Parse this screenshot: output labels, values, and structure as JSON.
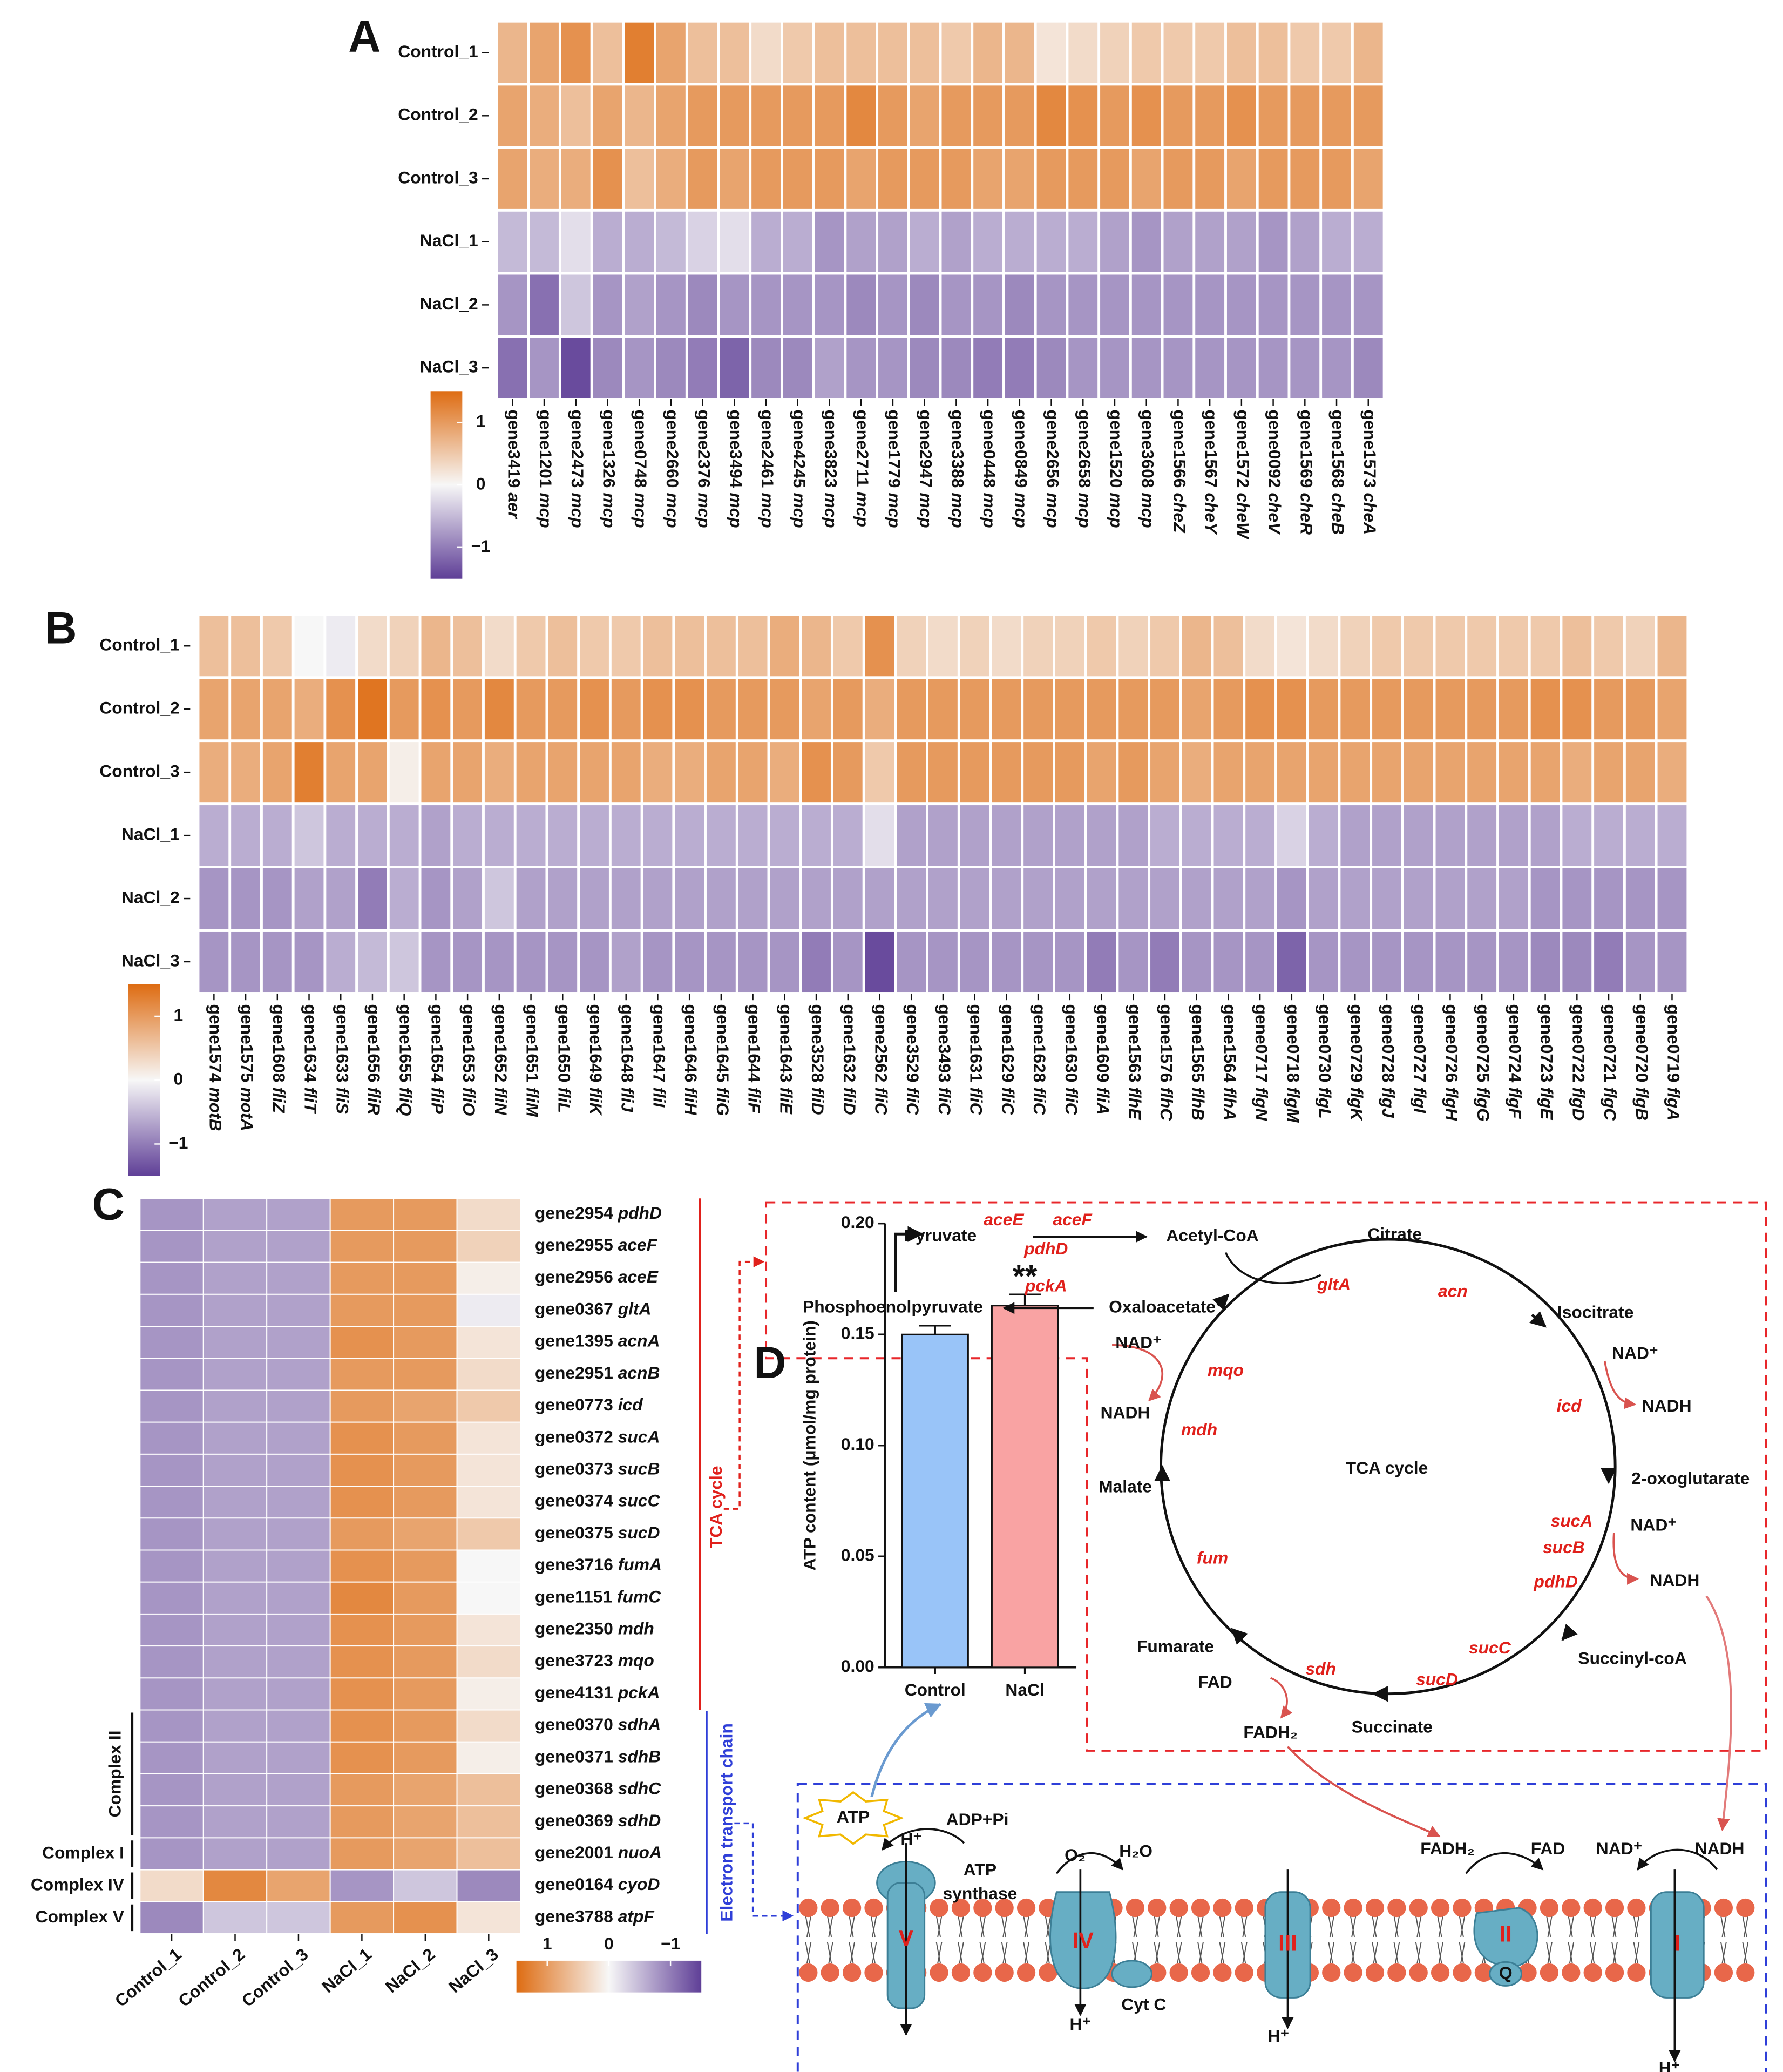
{
  "chart_data": [
    {
      "type": "heatmap",
      "panel": "A",
      "rows": [
        "Control_1",
        "Control_2",
        "Control_3",
        "NaCl_1",
        "NaCl_2",
        "NaCl_3"
      ],
      "columns": [
        "gene3419 aer",
        "gene1201 mcp",
        "gene2473 mcp",
        "gene1326 mcp",
        "gene0748 mcp",
        "gene2660 mcp",
        "gene2376 mcp",
        "gene3494 mcp",
        "gene2461 mcp",
        "gene4245 mcp",
        "gene3823 mcp",
        "gene2711 mcp",
        "gene1779 mcp",
        "gene2947 mcp",
        "gene3388 mcp",
        "gene0448 mcp",
        "gene0849 mcp",
        "gene2656 mcp",
        "gene2658 mcp",
        "gene1520 mcp",
        "gene3608 mcp",
        "gene1566 cheZ",
        "gene1567 cheY",
        "gene1572 cheW",
        "gene0092 cheV",
        "gene1569 cheR",
        "gene1568 cheB",
        "gene1573 cheA"
      ],
      "values": [
        [
          0.7,
          0.9,
          1.1,
          0.6,
          1.3,
          0.9,
          0.6,
          0.6,
          0.3,
          0.5,
          0.6,
          0.6,
          0.6,
          0.6,
          0.5,
          0.7,
          0.7,
          0.2,
          0.3,
          0.4,
          0.5,
          0.5,
          0.5,
          0.6,
          0.6,
          0.5,
          0.5,
          0.7
        ],
        [
          0.9,
          0.8,
          0.6,
          0.9,
          0.7,
          0.9,
          1.0,
          1.0,
          1.0,
          1.0,
          1.0,
          1.2,
          1.0,
          0.9,
          1.0,
          1.0,
          1.0,
          1.2,
          1.1,
          1.0,
          1.1,
          1.0,
          1.0,
          1.1,
          1.0,
          1.0,
          1.0,
          1.0
        ],
        [
          0.9,
          0.8,
          0.8,
          1.1,
          0.6,
          0.8,
          1.0,
          0.9,
          1.0,
          1.0,
          1.0,
          0.9,
          1.0,
          1.0,
          1.0,
          0.9,
          0.9,
          1.0,
          1.0,
          1.0,
          0.9,
          1.0,
          1.0,
          0.9,
          1.0,
          1.0,
          1.0,
          0.9
        ],
        [
          -0.5,
          -0.5,
          -0.2,
          -0.6,
          -0.6,
          -0.5,
          -0.3,
          -0.2,
          -0.6,
          -0.6,
          -0.8,
          -0.7,
          -0.7,
          -0.6,
          -0.7,
          -0.6,
          -0.6,
          -0.6,
          -0.6,
          -0.7,
          -0.8,
          -0.7,
          -0.7,
          -0.7,
          -0.8,
          -0.7,
          -0.6,
          -0.6
        ],
        [
          -0.8,
          -1.1,
          -0.4,
          -0.8,
          -0.7,
          -0.8,
          -0.9,
          -0.8,
          -0.8,
          -0.8,
          -0.8,
          -0.9,
          -0.8,
          -0.9,
          -0.8,
          -0.8,
          -0.9,
          -0.8,
          -0.8,
          -0.8,
          -0.8,
          -0.8,
          -0.8,
          -0.8,
          -0.8,
          -0.8,
          -0.8,
          -0.8
        ],
        [
          -1.1,
          -0.8,
          -1.4,
          -0.9,
          -0.8,
          -0.9,
          -1.0,
          -1.2,
          -0.9,
          -0.9,
          -0.7,
          -0.8,
          -0.8,
          -0.9,
          -0.9,
          -1.0,
          -1.0,
          -0.9,
          -0.8,
          -0.8,
          -0.8,
          -0.8,
          -0.8,
          -0.8,
          -0.8,
          -0.8,
          -0.8,
          -0.9
        ]
      ],
      "zlim": [
        -1.5,
        1.5
      ],
      "zticks": [
        1,
        0,
        {
          "value": -1,
          "label": "−1"
        }
      ],
      "colors": {
        "low": "#5f3f97",
        "mid": "#f7f7f7",
        "high": "#de6c12"
      }
    },
    {
      "type": "heatmap",
      "panel": "B",
      "rows": [
        "Control_1",
        "Control_2",
        "Control_3",
        "NaCl_1",
        "NaCl_2",
        "NaCl_3"
      ],
      "columns": [
        "gene1574 motB",
        "gene1575 motA",
        "gene1608 fliZ",
        "gene1634 fliT",
        "gene1633 fliS",
        "gene1656 fliR",
        "gene1655 fliQ",
        "gene1654 fliP",
        "gene1653 fliO",
        "gene1652 fliN",
        "gene1651 fliM",
        "gene1650 fliL",
        "gene1649 fliK",
        "gene1648 fliJ",
        "gene1647 fliI",
        "gene1646 fliH",
        "gene1645 fliG",
        "gene1644 fliF",
        "gene1643 fliE",
        "gene3528 fliD",
        "gene1632 fliD",
        "gene2562 fliC",
        "gene3529 fliC",
        "gene3493 fliC",
        "gene1631 fliC",
        "gene1629 fliC",
        "gene1628 fliC",
        "gene1630 fliC",
        "gene1609 fliA",
        "gene1563 flhE",
        "gene1576 flhC",
        "gene1565 flhB",
        "gene1564 flhA",
        "gene0717 flgN",
        "gene0718 flgM",
        "gene0730 flgL",
        "gene0729 flgK",
        "gene0728 flgJ",
        "gene0727 flgI",
        "gene0726 flgH",
        "gene0725 flgG",
        "gene0724 flgF",
        "gene0723 flgE",
        "gene0722 flgD",
        "gene0721 flgC",
        "gene0720 flgB",
        "gene0719 flgA"
      ],
      "values": [
        [
          0.6,
          0.6,
          0.5,
          0.0,
          -0.1,
          0.3,
          0.4,
          0.7,
          0.6,
          0.3,
          0.5,
          0.6,
          0.5,
          0.5,
          0.6,
          0.6,
          0.6,
          0.6,
          0.8,
          0.7,
          0.5,
          1.1,
          0.4,
          0.3,
          0.4,
          0.3,
          0.4,
          0.4,
          0.5,
          0.4,
          0.5,
          0.7,
          0.6,
          0.3,
          0.2,
          0.3,
          0.4,
          0.5,
          0.5,
          0.5,
          0.5,
          0.5,
          0.5,
          0.6,
          0.5,
          0.4,
          0.7
        ],
        [
          0.9,
          0.9,
          0.9,
          0.8,
          1.1,
          1.4,
          1.0,
          1.1,
          1.0,
          1.2,
          1.0,
          1.0,
          1.1,
          1.0,
          1.1,
          1.1,
          1.0,
          1.0,
          1.0,
          0.9,
          1.0,
          0.8,
          1.0,
          1.0,
          1.0,
          1.0,
          1.0,
          1.0,
          1.0,
          1.0,
          1.0,
          0.9,
          1.0,
          1.1,
          1.1,
          1.0,
          1.0,
          1.0,
          1.0,
          1.0,
          1.0,
          1.0,
          1.1,
          1.1,
          1.0,
          1.0,
          0.9
        ],
        [
          0.8,
          0.8,
          0.9,
          1.3,
          0.9,
          0.9,
          0.1,
          0.9,
          0.9,
          0.8,
          0.9,
          0.9,
          0.9,
          0.9,
          0.8,
          0.8,
          0.9,
          0.9,
          0.8,
          1.1,
          1.0,
          0.5,
          1.0,
          1.0,
          1.0,
          1.0,
          1.0,
          1.0,
          0.9,
          1.0,
          0.9,
          0.8,
          0.9,
          0.9,
          0.9,
          0.9,
          0.9,
          0.9,
          0.9,
          0.9,
          0.9,
          0.9,
          0.9,
          0.8,
          0.9,
          0.9,
          0.8
        ],
        [
          -0.6,
          -0.6,
          -0.6,
          -0.4,
          -0.6,
          -0.6,
          -0.6,
          -0.7,
          -0.6,
          -0.6,
          -0.6,
          -0.6,
          -0.6,
          -0.6,
          -0.6,
          -0.6,
          -0.6,
          -0.6,
          -0.6,
          -0.6,
          -0.6,
          -0.2,
          -0.7,
          -0.7,
          -0.7,
          -0.7,
          -0.7,
          -0.7,
          -0.7,
          -0.7,
          -0.6,
          -0.6,
          -0.6,
          -0.6,
          -0.3,
          -0.6,
          -0.7,
          -0.7,
          -0.7,
          -0.7,
          -0.7,
          -0.7,
          -0.7,
          -0.6,
          -0.6,
          -0.6,
          -0.6
        ],
        [
          -0.8,
          -0.8,
          -0.8,
          -0.7,
          -0.7,
          -1.0,
          -0.6,
          -0.8,
          -0.7,
          -0.4,
          -0.7,
          -0.7,
          -0.7,
          -0.7,
          -0.7,
          -0.7,
          -0.7,
          -0.7,
          -0.7,
          -0.7,
          -0.7,
          -0.7,
          -0.7,
          -0.7,
          -0.7,
          -0.7,
          -0.7,
          -0.7,
          -0.7,
          -0.7,
          -0.7,
          -0.7,
          -0.7,
          -0.7,
          -0.8,
          -0.7,
          -0.7,
          -0.7,
          -0.7,
          -0.7,
          -0.7,
          -0.7,
          -0.8,
          -0.8,
          -0.8,
          -0.8,
          -0.8
        ],
        [
          -0.8,
          -0.8,
          -0.8,
          -0.8,
          -0.6,
          -0.5,
          -0.4,
          -0.8,
          -0.8,
          -0.8,
          -0.8,
          -0.8,
          -0.8,
          -0.7,
          -0.8,
          -0.8,
          -0.8,
          -0.8,
          -0.8,
          -1.0,
          -0.8,
          -1.4,
          -0.8,
          -0.8,
          -0.8,
          -0.8,
          -0.8,
          -0.8,
          -1.0,
          -0.8,
          -1.0,
          -0.8,
          -0.8,
          -0.8,
          -1.2,
          -0.8,
          -0.8,
          -0.8,
          -0.8,
          -0.8,
          -0.8,
          -0.8,
          -0.9,
          -0.9,
          -1.0,
          -0.8,
          -0.8
        ]
      ],
      "zlim": [
        -1.5,
        1.5
      ],
      "zticks": [
        1,
        0,
        {
          "value": -1,
          "label": "−1"
        }
      ],
      "colors": {
        "low": "#5f3f97",
        "mid": "#f7f7f7",
        "high": "#de6c12"
      }
    },
    {
      "type": "heatmap",
      "panel": "C",
      "rows": [
        "gene2954 pdhD",
        "gene2955 aceF",
        "gene2956 aceE",
        "gene0367 gltA",
        "gene1395 acnA",
        "gene2951 acnB",
        "gene0773 icd",
        "gene0372 sucA",
        "gene0373 sucB",
        "gene0374 sucC",
        "gene0375 sucD",
        "gene3716 fumA",
        "gene1151 fumC",
        "gene2350 mdh",
        "gene3723 mqo",
        "gene4131 pckA",
        "gene0370 sdhA",
        "gene0371 sdhB",
        "gene0368 sdhC",
        "gene0369 sdhD",
        "gene2001 nuoA",
        "gene0164 cyoD",
        "gene3788 atpF"
      ],
      "columns": [
        "Control_1",
        "Control_2",
        "Control_3",
        "NaCl_1",
        "NaCl_2",
        "NaCl_3"
      ],
      "values": [
        [
          -0.8,
          -0.7,
          -0.7,
          1.0,
          1.0,
          0.3
        ],
        [
          -0.8,
          -0.7,
          -0.7,
          1.0,
          1.0,
          0.4
        ],
        [
          -0.8,
          -0.7,
          -0.7,
          1.0,
          1.0,
          0.1
        ],
        [
          -0.8,
          -0.7,
          -0.7,
          1.0,
          1.0,
          -0.1
        ],
        [
          -0.8,
          -0.7,
          -0.7,
          1.1,
          1.0,
          0.2
        ],
        [
          -0.8,
          -0.7,
          -0.7,
          1.0,
          1.0,
          0.3
        ],
        [
          -0.8,
          -0.7,
          -0.7,
          1.0,
          0.9,
          0.5
        ],
        [
          -0.8,
          -0.7,
          -0.7,
          1.1,
          1.0,
          0.2
        ],
        [
          -0.8,
          -0.7,
          -0.7,
          1.1,
          1.0,
          0.2
        ],
        [
          -0.8,
          -0.7,
          -0.7,
          1.1,
          1.0,
          0.2
        ],
        [
          -0.8,
          -0.7,
          -0.7,
          1.0,
          0.9,
          0.5
        ],
        [
          -0.8,
          -0.7,
          -0.7,
          1.1,
          1.0,
          0.0
        ],
        [
          -0.8,
          -0.7,
          -0.7,
          1.2,
          1.0,
          0.0
        ],
        [
          -0.8,
          -0.7,
          -0.7,
          1.1,
          1.0,
          0.2
        ],
        [
          -0.8,
          -0.7,
          -0.7,
          1.1,
          1.0,
          0.3
        ],
        [
          -0.8,
          -0.7,
          -0.7,
          1.1,
          1.0,
          0.1
        ],
        [
          -0.8,
          -0.7,
          -0.7,
          1.1,
          1.0,
          0.3
        ],
        [
          -0.8,
          -0.7,
          -0.7,
          1.1,
          1.0,
          0.1
        ],
        [
          -0.8,
          -0.7,
          -0.7,
          1.0,
          0.9,
          0.6
        ],
        [
          -0.8,
          -0.7,
          -0.7,
          1.0,
          0.9,
          0.6
        ],
        [
          -0.8,
          -0.7,
          -0.7,
          1.0,
          0.9,
          0.6
        ],
        [
          0.3,
          1.2,
          0.9,
          -0.8,
          -0.4,
          -0.9
        ],
        [
          -0.9,
          -0.4,
          -0.4,
          1.0,
          1.1,
          0.2
        ]
      ],
      "zlim": [
        -1.5,
        1.5
      ],
      "zticks": [
        1,
        0,
        {
          "value": -1,
          "label": "−1"
        }
      ],
      "colors": {
        "low": "#5f3f97",
        "mid": "#f7f7f7",
        "high": "#de6c12"
      },
      "row_groups": [
        "Complex II",
        "Complex I",
        "Complex IV",
        "Complex V"
      ],
      "side_labels": [
        "TCA cycle",
        "Electron transport chain"
      ]
    },
    {
      "type": "bar",
      "panel": "D",
      "categories": [
        "Control",
        "NaCl"
      ],
      "values": [
        0.15,
        0.163
      ],
      "errors": [
        0.004,
        0.005
      ],
      "colors": [
        "#99c4f8",
        "#f9a3a3"
      ],
      "ylabel": "ATP content (μmol/mg protein)",
      "ylim": [
        0,
        0.2
      ],
      "yticks": [
        {
          "value": 0,
          "label": "0.00"
        },
        {
          "value": 0.05,
          "label": "0.05"
        },
        {
          "value": 0.1,
          "label": "0.10"
        },
        {
          "value": 0.15,
          "label": "0.15"
        },
        {
          "value": 0.2,
          "label": "0.20"
        }
      ],
      "annotation": "**"
    }
  ],
  "diagram": {
    "labels": [
      "Pyruvate",
      "Acetyl-CoA",
      "aceE",
      "aceF",
      "pdhD",
      "Phosphoenolpyruvate",
      "pckA",
      "Oxaloacetate",
      "Citrate",
      "gltA",
      "acn",
      "Isocitrate",
      "NAD⁺",
      "mqo",
      "NADH",
      "mdh",
      "NAD⁺",
      "icd",
      "NADH",
      "TCA cycle",
      "Malate",
      "2-oxoglutarate",
      "sucA",
      "sucB",
      "pdhD",
      "NAD⁺",
      "NADH",
      "fum",
      "Fumarate",
      "FAD",
      "sdh",
      "FADH₂",
      "sucC",
      "sucD",
      "Succinyl-coA",
      "Succinate",
      "ATP",
      "H⁺",
      "ADP+Pi",
      "ATP",
      "synthase",
      "O₂",
      "H₂O",
      "FADH₂",
      "FAD",
      "NAD⁺",
      "NADH",
      "V",
      "IV",
      "III",
      "II",
      "Q",
      "I",
      "H⁺",
      "Cyt C",
      "H⁺",
      "H⁺"
    ]
  }
}
